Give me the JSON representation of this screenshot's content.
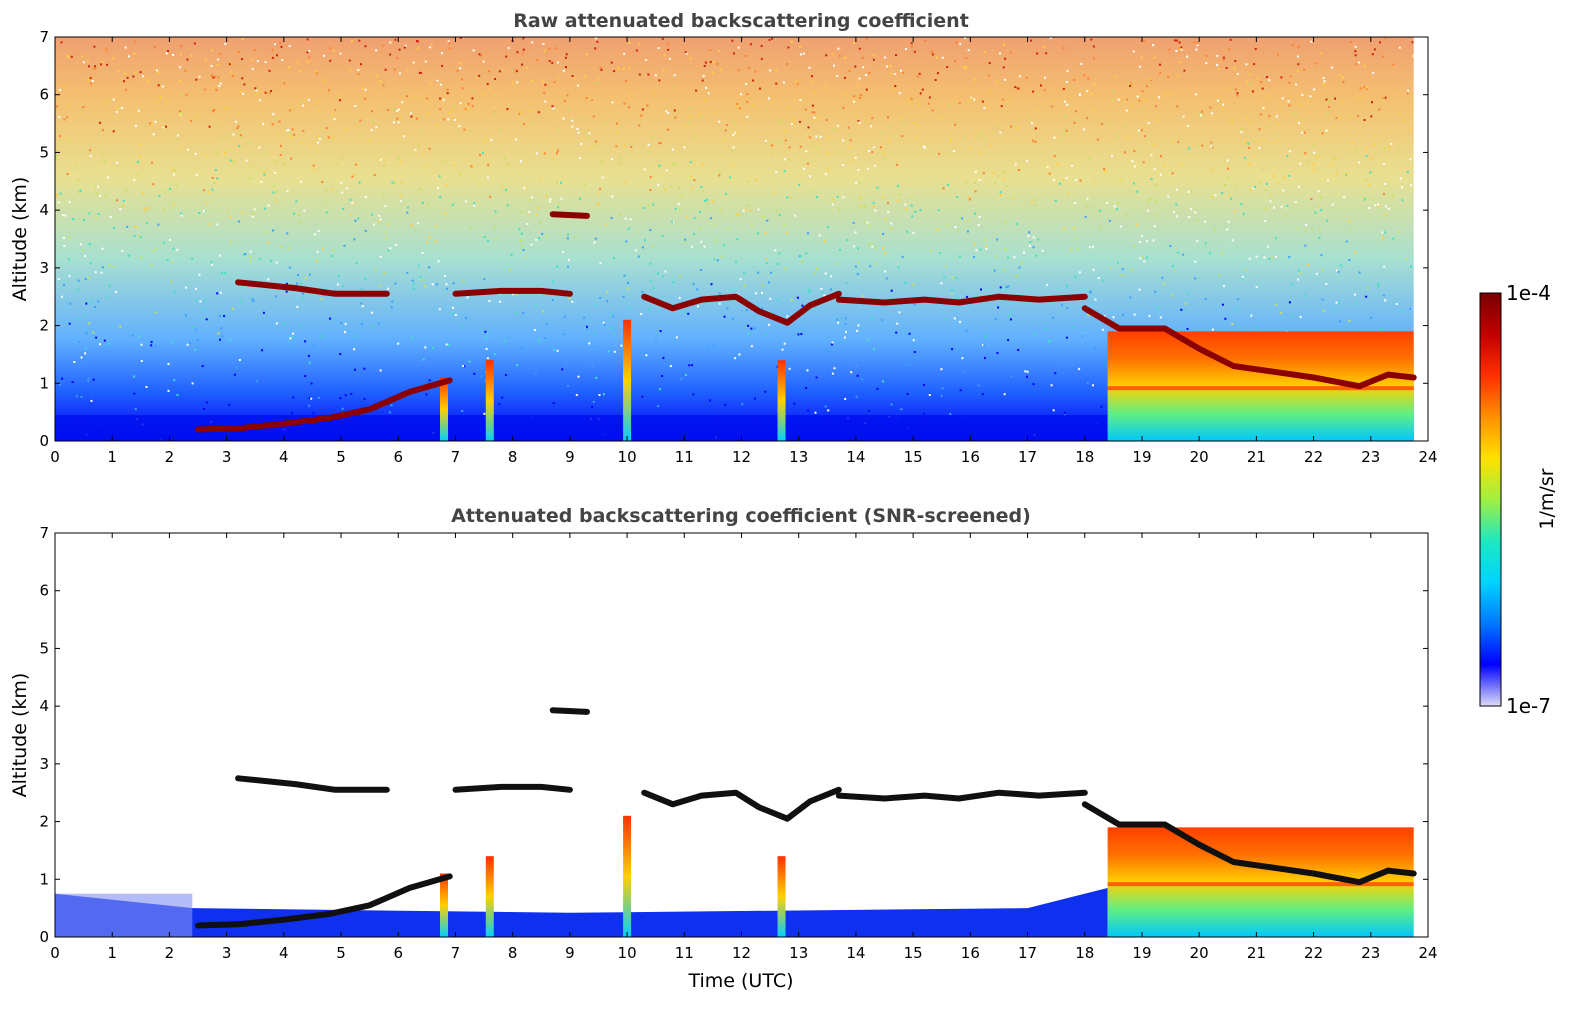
{
  "chart_data": [
    {
      "type": "heatmap",
      "title": "Raw attenuated backscattering coefficient",
      "xlabel": "",
      "ylabel": "Altitude (km)",
      "xlim": [
        0,
        24
      ],
      "ylim": [
        0,
        7
      ],
      "xticks": [
        "0",
        "1",
        "2",
        "3",
        "4",
        "5",
        "6",
        "7",
        "8",
        "9",
        "10",
        "11",
        "12",
        "13",
        "14",
        "15",
        "16",
        "17",
        "18",
        "19",
        "20",
        "21",
        "22",
        "23",
        "24"
      ],
      "yticks": [
        "0",
        "1",
        "2",
        "3",
        "4",
        "5",
        "6",
        "7"
      ],
      "screened": false,
      "layers": [
        {
          "x": [
            3.2,
            4.2,
            4.9,
            5.8
          ],
          "y": [
            2.75,
            2.65,
            2.55,
            2.55
          ]
        },
        {
          "x": [
            7.0,
            7.8,
            8.5,
            9.0
          ],
          "y": [
            2.55,
            2.6,
            2.6,
            2.55
          ]
        },
        {
          "x": [
            10.3,
            10.8,
            11.3,
            11.9,
            12.3,
            12.8,
            13.2,
            13.7
          ],
          "y": [
            2.5,
            2.3,
            2.45,
            2.5,
            2.25,
            2.05,
            2.35,
            2.55
          ]
        },
        {
          "x": [
            13.7,
            14.5,
            15.2,
            15.8,
            16.5,
            17.2,
            18.0
          ],
          "y": [
            2.45,
            2.4,
            2.45,
            2.4,
            2.5,
            2.45,
            2.5
          ]
        },
        {
          "x": [
            18.0,
            18.6,
            19.4,
            20.0,
            20.6,
            21.3,
            22.0,
            22.8,
            23.3,
            23.75
          ],
          "y": [
            2.3,
            1.95,
            1.95,
            1.6,
            1.3,
            1.2,
            1.1,
            0.95,
            1.15,
            1.1
          ]
        },
        {
          "x": [
            2.5,
            3.2,
            4.0,
            4.8,
            5.5,
            6.2,
            6.9
          ],
          "y": [
            0.2,
            0.22,
            0.3,
            0.4,
            0.55,
            0.85,
            1.05
          ]
        },
        {
          "x": [
            8.7,
            9.3
          ],
          "y": [
            3.93,
            3.9
          ]
        }
      ],
      "plumes": [
        {
          "x": 6.8,
          "top": 1.1
        },
        {
          "x": 7.6,
          "top": 1.4
        },
        {
          "x": 10.0,
          "top": 2.1
        },
        {
          "x": 12.7,
          "top": 1.4
        }
      ],
      "aerosol_region": {
        "x0": 18.4,
        "x1": 23.75,
        "top": 2.6
      }
    },
    {
      "type": "heatmap",
      "title": "Attenuated backscattering coefficient (SNR-screened)",
      "xlabel": "Time (UTC)",
      "ylabel": "Altitude (km)",
      "xlim": [
        0,
        24
      ],
      "ylim": [
        0,
        7
      ],
      "xticks": [
        "0",
        "1",
        "2",
        "3",
        "4",
        "5",
        "6",
        "7",
        "8",
        "9",
        "10",
        "11",
        "12",
        "13",
        "14",
        "15",
        "16",
        "17",
        "18",
        "19",
        "20",
        "21",
        "22",
        "23",
        "24"
      ],
      "yticks": [
        "0",
        "1",
        "2",
        "3",
        "4",
        "5",
        "6",
        "7"
      ],
      "screened": true
    }
  ],
  "colorbar": {
    "label": "1/m/sr",
    "max_label": "1e-4",
    "min_label": "1e-7",
    "scale": "log",
    "colormap": [
      "#dcdcf8",
      "#0000ff",
      "#0078ff",
      "#00d4ff",
      "#20e8c0",
      "#a0f040",
      "#ffe000",
      "#ff9000",
      "#ff3000",
      "#c00000",
      "#7a0000"
    ]
  }
}
